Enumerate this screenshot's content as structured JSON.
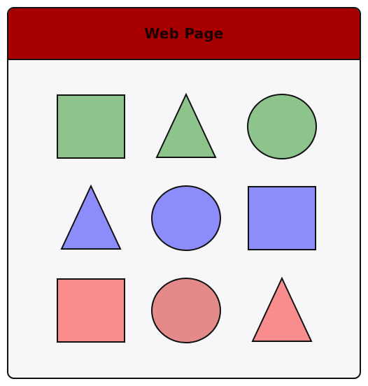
{
  "page": {
    "title": "Web Page"
  },
  "colors": {
    "header_bg": "#a80000",
    "body_bg": "#f7f7fa",
    "outline": "#111111"
  },
  "grid": [
    [
      {
        "shape": "square",
        "color": "green",
        "fill": "#8cc48c"
      },
      {
        "shape": "triangle",
        "color": "green",
        "fill": "#8cc48c"
      },
      {
        "shape": "circle",
        "color": "green",
        "fill": "#8cc48c"
      }
    ],
    [
      {
        "shape": "triangle",
        "color": "blue",
        "fill": "#8c8cfa"
      },
      {
        "shape": "circle",
        "color": "blue",
        "fill": "#8c8cfa"
      },
      {
        "shape": "square",
        "color": "blue",
        "fill": "#8c8cfa"
      }
    ],
    [
      {
        "shape": "square",
        "color": "red",
        "fill": "#f98c8c"
      },
      {
        "shape": "circle",
        "color": "red",
        "fill": "#e58a8a"
      },
      {
        "shape": "triangle",
        "color": "red",
        "fill": "#f98c8c"
      }
    ]
  ]
}
